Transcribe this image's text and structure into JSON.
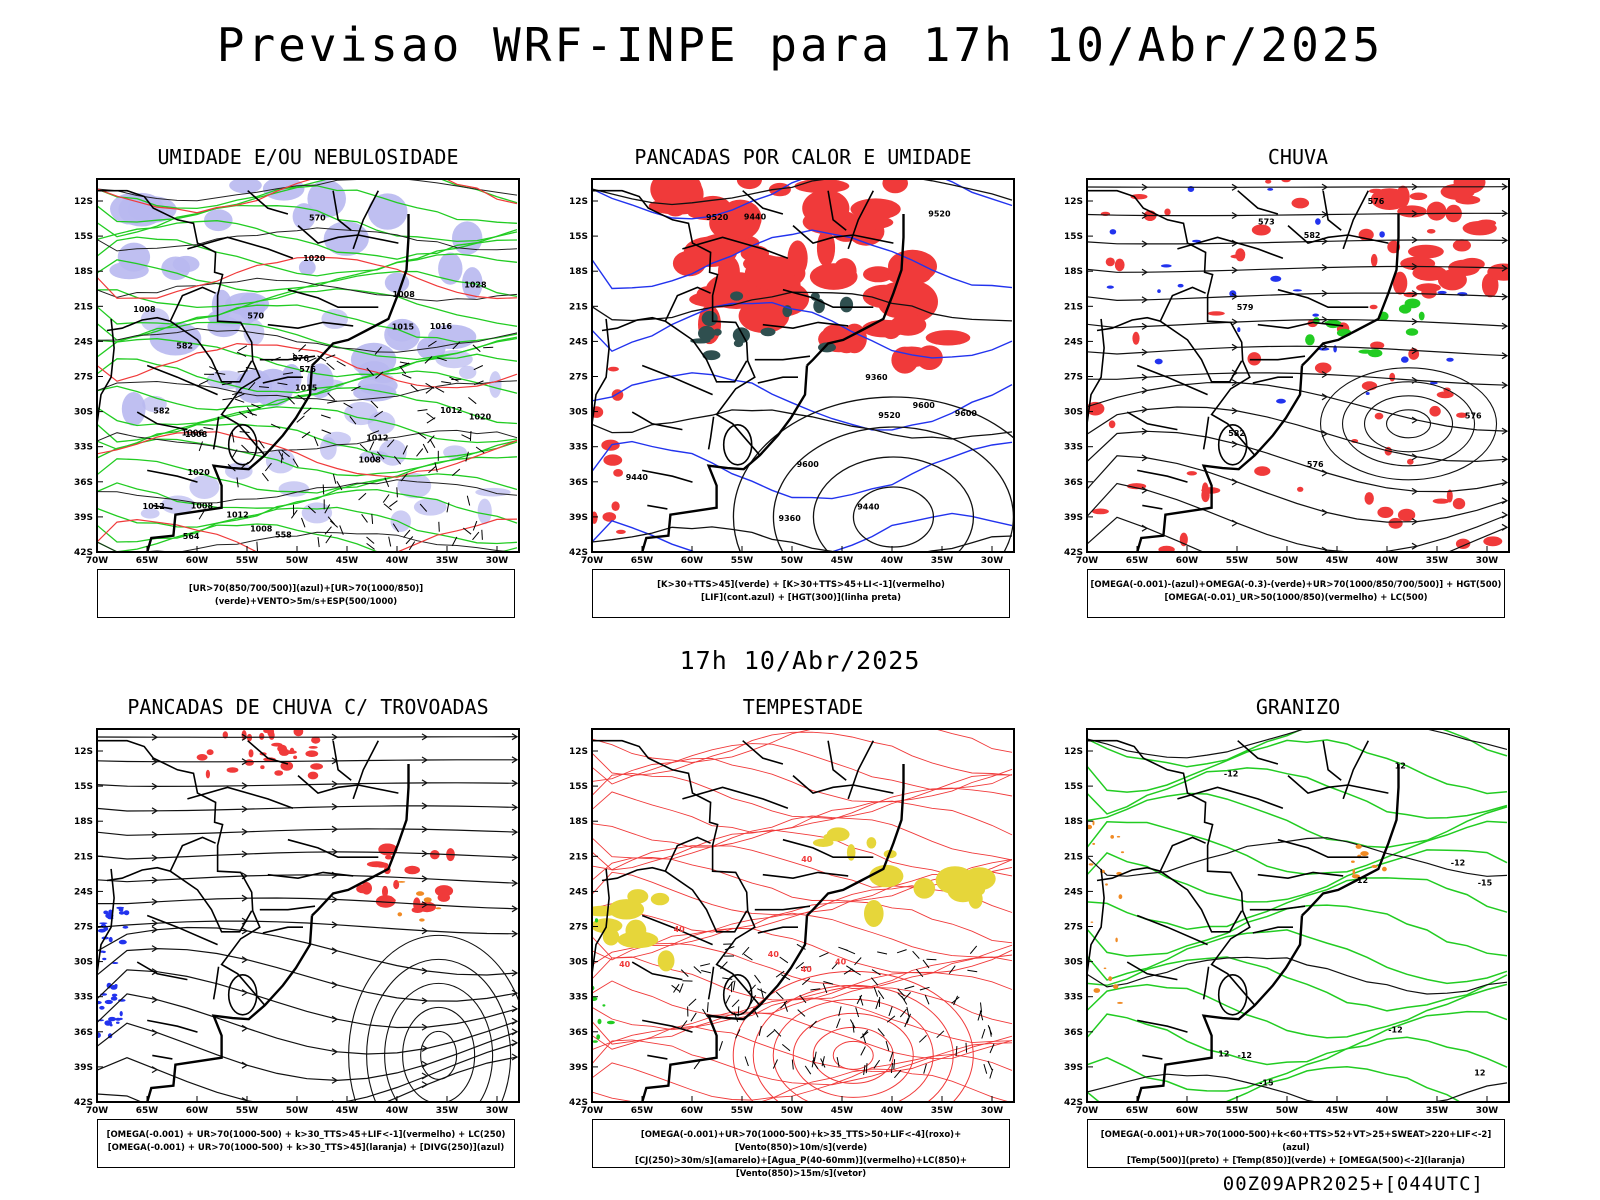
{
  "title": "Previsao WRF-INPE  para 17h 10/Abr/2025",
  "mid_date": "17h 10/Abr/2025",
  "footer": "00Z09APR2025+[044UTC]",
  "axes": {
    "lat_labels": [
      "12S",
      "15S",
      "18S",
      "21S",
      "24S",
      "27S",
      "30S",
      "33S",
      "36S",
      "39S",
      "42S"
    ],
    "lon_labels": [
      "70W",
      "65W",
      "60W",
      "55W",
      "50W",
      "45W",
      "40W",
      "35W",
      "30W"
    ]
  },
  "colors": {
    "humidity_blue": "#b8b8f0",
    "green": "#22cc22",
    "red": "#f03a3a",
    "blue": "#2233ee",
    "dark_teal": "#2f4f4f",
    "yellow": "#e6d63a",
    "orange": "#f08a24"
  },
  "panels": [
    {
      "title": "UMIDADE E/OU NEBULOSIDADE",
      "legend": [
        "[UR>70(850/700/500)](azul)+[UR>70(1000/850)](verde)+VENTO>5m/s+ESP(500/1000)"
      ],
      "labels": [
        "1008",
        "1008",
        "1008",
        "1006",
        "1008",
        "1008",
        "1012",
        "1008",
        "1012",
        "1015",
        "1012",
        "1015",
        "1016",
        "1020",
        "1020",
        "1028",
        "1020",
        "1012",
        "570",
        "576",
        "570",
        "558",
        "582",
        "564",
        "576",
        "582"
      ]
    },
    {
      "title": "PANCADAS POR CALOR E UMIDADE",
      "legend": [
        "[K>30+TTS>45](verde) + [K>30+TTS>45+LI<-1](vermelho)",
        "[LIF](cont.azul) + [HGT(300)](linha preta)"
      ],
      "labels": [
        "9600",
        "9600",
        "9600",
        "9520",
        "9520",
        "9520",
        "9440",
        "9440",
        "9440",
        "9360",
        "9360"
      ]
    },
    {
      "title": "CHUVA",
      "legend": [
        "[OMEGA(-0.001)-(azul)+OMEGA(-0.3)-(verde)+UR>70(1000/850/700/500)] + HGT(500)",
        "[OMEGA(-0.01)_UR>50(1000/850)(vermelho) + LC(500)"
      ],
      "labels": [
        "582",
        "582",
        "579",
        "576",
        "576",
        "573",
        "576"
      ]
    },
    {
      "title": "PANCADAS DE CHUVA C/ TROVOADAS",
      "legend": [
        "[OMEGA(-0.001) + UR>70(1000-500) + k>30_TTS>45+LIF<-1](vermelho) + LC(250)",
        "[OMEGA(-0.001) + UR>70(1000-500) + k>30_TTS>45](laranja) + [DIVG(250)](azul)"
      ],
      "labels": []
    },
    {
      "title": "TEMPESTADE",
      "legend": [
        "[OMEGA(-0.001)+UR>70(1000-500)+k>35_TTS>50+LIF<-4](roxo)+[Vento(850)>10m/s](verde)",
        "[CJ(250)>30m/s](amarelo)+[Agua_P(40-60mm)](vermelho)+LC(850)+[Vento(850)>15m/s](vetor)"
      ],
      "labels": [
        "40",
        "40",
        "40",
        "40",
        "40",
        "40"
      ]
    },
    {
      "title": "GRANIZO",
      "legend": [
        "[OMEGA(-0.001)+UR>70(1000-500)+k<60+TTS>52+VT>25+SWEAT>220+LIF<-2](azul)",
        "[Temp(500)](preto) + [Temp(850)](verde) + [OMEGA(500)<-2](laranja)"
      ],
      "labels": [
        "-12",
        "-12",
        "-12",
        "-15",
        "-15",
        "-12",
        "12",
        "12",
        "12",
        "-12"
      ]
    }
  ]
}
